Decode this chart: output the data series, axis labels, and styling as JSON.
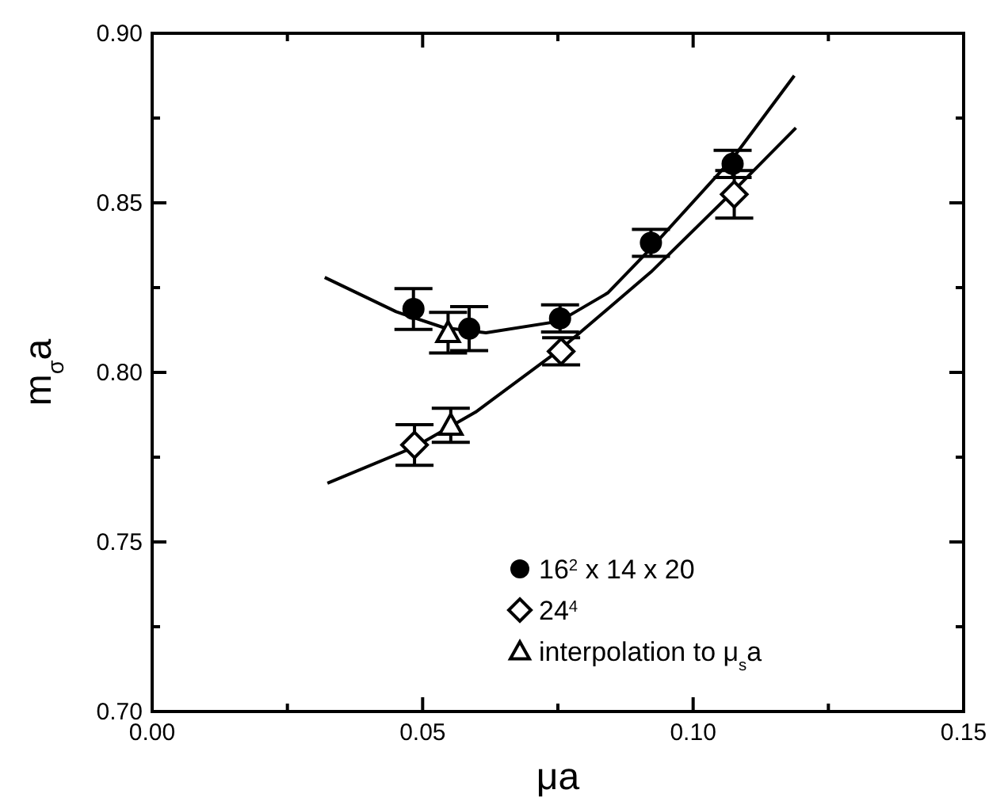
{
  "chart_data": {
    "type": "scatter",
    "xlabel": "μa",
    "ylabel": "m$_{σ}$a",
    "xlim": [
      0,
      0.15
    ],
    "ylim": [
      0.7,
      0.9
    ],
    "xticks": [
      {
        "value": 0,
        "label": "0.00"
      },
      {
        "value": 0.025,
        "label": null
      },
      0.05,
      {
        "value": 0.075,
        "label": null
      },
      {
        "value": 0.1,
        "label": "0.10"
      },
      {
        "value": 0.125,
        "label": null
      },
      0.15
    ],
    "yticks": [
      {
        "value": 0.7,
        "label": "0.70"
      },
      {
        "value": 0.725,
        "label": null
      },
      0.75,
      {
        "value": 0.775,
        "label": null
      },
      {
        "value": 0.8,
        "label": "0.80"
      },
      {
        "value": 0.825,
        "label": null
      },
      0.85,
      {
        "value": 0.875,
        "label": null
      },
      {
        "value": 0.9,
        "label": "0.90"
      }
    ],
    "grid": false,
    "legend": "bottom right",
    "series": [
      {
        "name": "16$^{2}$ x 14 x 20",
        "color": "#000000",
        "marker": "circle",
        "x": [
          0.0483,
          0.0586,
          0.0754,
          0.0922,
          0.1073
        ],
        "values": [
          0.8187,
          0.8129,
          0.8159,
          0.8382,
          0.8615
        ],
        "errors": [
          0.006,
          0.0065,
          0.004,
          0.004,
          0.004
        ]
      },
      {
        "name": "24$^{4}$",
        "color": "#000000",
        "marker": "diamond",
        "x": [
          0.0485,
          0.0756,
          0.1076
        ],
        "values": [
          0.7786,
          0.8062,
          0.8525
        ],
        "errors": [
          0.006,
          0.004,
          0.007
        ]
      },
      {
        "name": "interpolation to μ$_{s}$a",
        "color": "#000000",
        "marker": "triangle",
        "x": [
          0.0547,
          0.0552
        ],
        "values": [
          0.8117,
          0.7844
        ],
        "errors": [
          0.006,
          0.005
        ]
      },
      {
        "type": "line",
        "color": "#000000",
        "marker": "none",
        "x": [
          0.0319,
          0.0451,
          0.0539,
          0.0617,
          0.0753,
          0.0842,
          0.0922,
          0.1073,
          0.1187
        ],
        "values": [
          0.828,
          0.8179,
          0.8132,
          0.8117,
          0.8151,
          0.8234,
          0.8366,
          0.8631,
          0.8875
        ]
      },
      {
        "type": "line",
        "color": "#000000",
        "marker": "none",
        "x": [
          0.0324,
          0.0485,
          0.0598,
          0.0756,
          0.0922,
          0.1076,
          0.119
        ],
        "values": [
          0.7673,
          0.778,
          0.7883,
          0.807,
          0.8296,
          0.8537,
          0.8721
        ]
      }
    ]
  }
}
